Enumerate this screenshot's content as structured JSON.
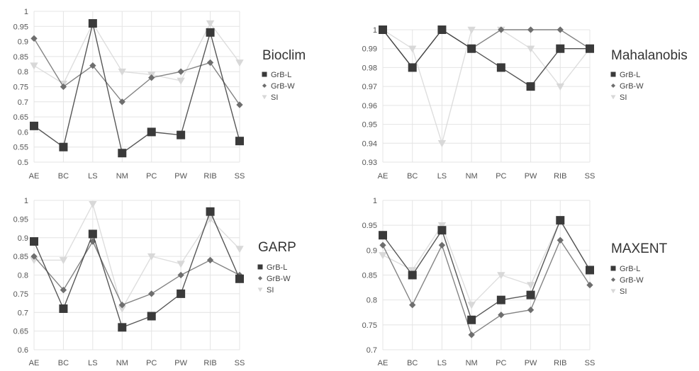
{
  "series_styles": {
    "GrB-L": {
      "color": "#3a3a3a",
      "marker": "square"
    },
    "GrB-W": {
      "color": "#6e6e6e",
      "marker": "diamond"
    },
    "SI": {
      "color": "#d8d8d8",
      "marker": "triangle-down"
    }
  },
  "chart_data": [
    {
      "type": "line",
      "title": "Bioclim",
      "categories": [
        "AE",
        "BC",
        "LS",
        "NM",
        "PC",
        "PW",
        "RIB",
        "SS"
      ],
      "ylim": [
        0.5,
        1
      ],
      "yticks": [
        "0.5",
        "0.55",
        "0.6",
        "0.65",
        "0.7",
        "0.75",
        "0.8",
        "0.85",
        "0.9",
        "0.95",
        "1"
      ],
      "grid": true,
      "legend": "right",
      "series": [
        {
          "name": "GrB-L",
          "values": [
            0.62,
            0.55,
            0.96,
            0.53,
            0.6,
            0.59,
            0.93,
            0.57
          ]
        },
        {
          "name": "GrB-W",
          "values": [
            0.91,
            0.75,
            0.82,
            0.7,
            0.78,
            0.8,
            0.83,
            0.69
          ]
        },
        {
          "name": "SI",
          "values": [
            0.82,
            0.76,
            0.96,
            0.8,
            0.79,
            0.77,
            0.96,
            0.83
          ]
        }
      ]
    },
    {
      "type": "line",
      "title": "Mahalanobis",
      "categories": [
        "AE",
        "BC",
        "LS",
        "NM",
        "PC",
        "PW",
        "RIB",
        "SS"
      ],
      "ylim": [
        0.93,
        1
      ],
      "yticks": [
        "0.93",
        "0.94",
        "0.95",
        "0.96",
        "0.97",
        "0.98",
        "0.99",
        "1"
      ],
      "grid": true,
      "legend": "right",
      "series": [
        {
          "name": "GrB-L",
          "values": [
            1.0,
            0.98,
            1.0,
            0.99,
            0.98,
            0.97,
            0.99,
            0.99
          ]
        },
        {
          "name": "GrB-W",
          "values": [
            1.0,
            0.98,
            1.0,
            0.99,
            1.0,
            1.0,
            1.0,
            0.99
          ]
        },
        {
          "name": "SI",
          "values": [
            1.0,
            0.99,
            0.94,
            1.0,
            1.0,
            0.99,
            0.97,
            0.99
          ]
        }
      ]
    },
    {
      "type": "line",
      "title": "GARP",
      "categories": [
        "AE",
        "BC",
        "LS",
        "NM",
        "PC",
        "PW",
        "RIB",
        "SS"
      ],
      "ylim": [
        0.6,
        1
      ],
      "yticks": [
        "0.6",
        "0.65",
        "0.7",
        "0.75",
        "0.8",
        "0.85",
        "0.9",
        "0.95",
        "1"
      ],
      "grid": true,
      "legend": "right",
      "series": [
        {
          "name": "GrB-L",
          "values": [
            0.89,
            0.71,
            0.91,
            0.66,
            0.69,
            0.75,
            0.97,
            0.79
          ]
        },
        {
          "name": "GrB-W",
          "values": [
            0.85,
            0.76,
            0.89,
            0.72,
            0.75,
            0.8,
            0.84,
            0.8
          ]
        },
        {
          "name": "SI",
          "values": [
            0.84,
            0.84,
            0.99,
            0.71,
            0.85,
            0.83,
            0.95,
            0.87
          ]
        }
      ]
    },
    {
      "type": "line",
      "title": "MAXENT",
      "categories": [
        "AE",
        "BC",
        "LS",
        "NM",
        "PC",
        "PW",
        "RIB",
        "SS"
      ],
      "ylim": [
        0.7,
        1
      ],
      "yticks": [
        "0.7",
        "0.75",
        "0.8",
        "0.85",
        "0.9",
        "0.95",
        "1"
      ],
      "grid": true,
      "legend": "right",
      "series": [
        {
          "name": "GrB-L",
          "values": [
            0.93,
            0.85,
            0.94,
            0.76,
            0.8,
            0.81,
            0.96,
            0.86
          ]
        },
        {
          "name": "GrB-W",
          "values": [
            0.91,
            0.79,
            0.91,
            0.73,
            0.77,
            0.78,
            0.92,
            0.83
          ]
        },
        {
          "name": "SI",
          "values": [
            0.89,
            0.86,
            0.95,
            0.79,
            0.85,
            0.83,
            0.96,
            0.86
          ]
        }
      ]
    }
  ]
}
